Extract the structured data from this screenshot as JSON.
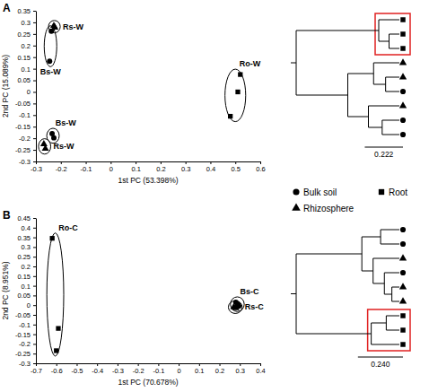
{
  "chart_data": [
    {
      "type": "scatter",
      "title": "A",
      "x_label": "1st PC (53.398%)",
      "y_label": "2nd PC (15.089%)",
      "xlim": [
        -0.3,
        0.6
      ],
      "ylim": [
        -0.3,
        0.35
      ],
      "xticks": [
        -0.3,
        -0.2,
        -0.1,
        0,
        0.1,
        0.2,
        0.3,
        0.4,
        0.5,
        0.6
      ],
      "yticks": [
        -0.3,
        -0.25,
        -0.2,
        -0.15,
        -0.1,
        -0.05,
        0,
        0.05,
        0.1,
        0.15,
        0.2,
        0.25,
        0.3,
        0.35
      ],
      "series": [
        {
          "name": "Rs-W",
          "marker": "triangle",
          "color": "#000000",
          "x": [
            -0.228,
            -0.224
          ],
          "y": [
            0.285,
            0.278
          ]
        },
        {
          "name": "Bs-W",
          "marker": "circle",
          "color": "#000000",
          "x": [
            -0.238,
            -0.245
          ],
          "y": [
            0.262,
            0.132
          ]
        },
        {
          "name": "Bs-W",
          "marker": "circle",
          "color": "#000000",
          "x": [
            -0.235,
            -0.228
          ],
          "y": [
            -0.18,
            -0.198
          ]
        },
        {
          "name": "Rs-W",
          "marker": "triangle",
          "color": "#000000",
          "x": [
            -0.268,
            -0.262
          ],
          "y": [
            -0.225,
            -0.245
          ]
        },
        {
          "name": "Ro-W",
          "marker": "square",
          "color": "#000000",
          "x": [
            0.52,
            0.51,
            0.48
          ],
          "y": [
            0.075,
            0.0,
            -0.105
          ]
        }
      ]
    },
    {
      "type": "scatter",
      "title": "B",
      "x_label": "1st PC (70.678%)",
      "y_label": "2nd PC (8.951%)",
      "xlim": [
        -0.7,
        0.4
      ],
      "ylim": [
        -0.3,
        0.45
      ],
      "xticks": [
        -0.7,
        -0.6,
        -0.5,
        -0.4,
        -0.3,
        -0.2,
        -0.1,
        0,
        0.1,
        0.2,
        0.3,
        0.4
      ],
      "yticks": [
        -0.3,
        -0.25,
        -0.2,
        -0.15,
        -0.1,
        -0.05,
        0,
        0.05,
        0.1,
        0.15,
        0.2,
        0.25,
        0.3,
        0.35,
        0.4,
        0.45
      ],
      "series": [
        {
          "name": "Ro-C",
          "marker": "square",
          "color": "#000000",
          "x": [
            -0.62,
            -0.59,
            -0.6
          ],
          "y": [
            0.345,
            -0.12,
            -0.235
          ]
        },
        {
          "name": "Bs-C",
          "marker": "circle",
          "color": "#000000",
          "x": [
            0.28,
            0.29,
            0.295
          ],
          "y": [
            0.015,
            0.005,
            -0.005
          ]
        },
        {
          "name": "Rs-C",
          "marker": "triangle",
          "color": "#000000",
          "x": [
            0.27,
            0.28,
            0.285
          ],
          "y": [
            -0.01,
            -0.015,
            -0.005
          ]
        }
      ]
    },
    {
      "type": "dendrogram",
      "scale_bar": 0.222,
      "tree": {
        "height": 0.6,
        "children": [
          {
            "height": 0.12,
            "color": "#e02020",
            "children": [
              {
                "marker": "square"
              },
              {
                "height": 0.06,
                "children": [
                  {
                    "marker": "square"
                  },
                  {
                    "marker": "square"
                  }
                ]
              }
            ]
          },
          {
            "height": 0.3,
            "children": [
              {
                "height": 0.15,
                "children": [
                  {
                    "marker": "triangle"
                  },
                  {
                    "height": 0.08,
                    "children": [
                      {
                        "marker": "triangle"
                      },
                      {
                        "marker": "circle"
                      }
                    ]
                  }
                ]
              },
              {
                "height": 0.18,
                "children": [
                  {
                    "marker": "triangle"
                  },
                  {
                    "height": 0.1,
                    "children": [
                      {
                        "marker": "circle"
                      },
                      {
                        "marker": "circle"
                      }
                    ]
                  }
                ]
              }
            ]
          }
        ]
      }
    },
    {
      "type": "dendrogram",
      "scale_bar": {
        "value": 0.24,
        "label": "0.240"
      },
      "tree": {
        "height": 0.55,
        "children": [
          {
            "height": 0.2,
            "children": [
              {
                "height": 0.1,
                "children": [
                  {
                    "marker": "circle"
                  },
                  {
                    "marker": "circle"
                  }
                ]
              },
              {
                "height": 0.14,
                "children": [
                  {
                    "marker": "triangle"
                  },
                  {
                    "height": 0.08,
                    "children": [
                      {
                        "marker": "circle"
                      },
                      {
                        "height": 0.04,
                        "children": [
                          {
                            "marker": "triangle"
                          },
                          {
                            "marker": "triangle"
                          }
                        ]
                      }
                    ]
                  }
                ]
              }
            ]
          },
          {
            "height": 0.15,
            "color": "#e02020",
            "children": [
              {
                "height": 0.07,
                "children": [
                  {
                    "marker": "square"
                  },
                  {
                    "marker": "square"
                  }
                ]
              },
              {
                "marker": "square"
              }
            ]
          }
        ]
      }
    }
  ],
  "shape_legend": [
    {
      "name": "Bulk soil",
      "marker": "circle"
    },
    {
      "name": "Root",
      "marker": "square"
    },
    {
      "name": "Rhizosphere",
      "marker": "triangle"
    }
  ]
}
